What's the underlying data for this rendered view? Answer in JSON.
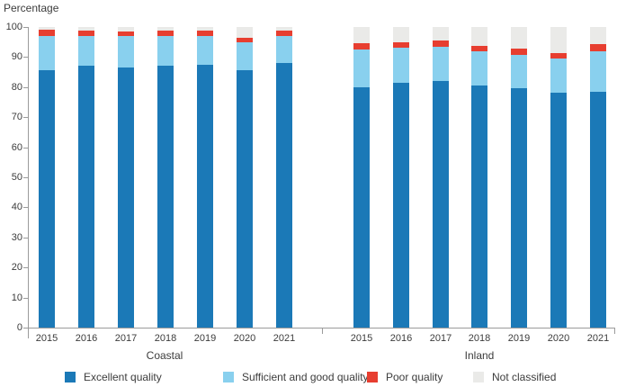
{
  "title": "Percentage",
  "chart_data": {
    "type": "bar",
    "stacked": true,
    "title": "Percentage",
    "xlabel": "",
    "ylabel": "Percentage",
    "ylim": [
      0,
      100
    ],
    "yticks": [
      0,
      10,
      20,
      30,
      40,
      50,
      60,
      70,
      80,
      90,
      100
    ],
    "grid": false,
    "legend_position": "bottom",
    "series_names": [
      "Excellent quality",
      "Sufficient and good quality",
      "Poor quality",
      "Not classified"
    ],
    "colors": {
      "Excellent quality": "#1b79b7",
      "Sufficient and good quality": "#89d0ee",
      "Poor quality": "#e73e30",
      "Not classified": "#eaeae8"
    },
    "groups": [
      {
        "label": "Coastal",
        "categories": [
          "2015",
          "2016",
          "2017",
          "2018",
          "2019",
          "2020",
          "2021"
        ],
        "series": [
          {
            "name": "Excellent quality",
            "values": [
              85.5,
              87.0,
              86.5,
              87.0,
              87.5,
              85.5,
              88.0
            ]
          },
          {
            "name": "Sufficient and good quality",
            "values": [
              11.5,
              10.0,
              10.5,
              10.0,
              9.5,
              9.5,
              9.0
            ]
          },
          {
            "name": "Poor quality",
            "values": [
              2.0,
              1.7,
              1.5,
              1.7,
              1.7,
              1.5,
              1.8
            ]
          },
          {
            "name": "Not classified",
            "values": [
              1.0,
              1.3,
              1.5,
              1.3,
              1.3,
              3.5,
              1.2
            ]
          }
        ]
      },
      {
        "label": "Inland",
        "categories": [
          "2015",
          "2016",
          "2017",
          "2018",
          "2019",
          "2020",
          "2021"
        ],
        "series": [
          {
            "name": "Excellent quality",
            "values": [
              80.0,
              81.5,
              82.0,
              80.5,
              79.5,
              78.0,
              78.5
            ]
          },
          {
            "name": "Sufficient and good quality",
            "values": [
              12.5,
              11.5,
              11.5,
              11.5,
              11.3,
              11.5,
              13.5
            ]
          },
          {
            "name": "Poor quality",
            "values": [
              2.0,
              2.0,
              2.0,
              1.7,
              1.9,
              1.9,
              2.3
            ]
          },
          {
            "name": "Not classified",
            "values": [
              5.5,
              5.0,
              4.5,
              6.3,
              7.3,
              8.6,
              5.7
            ]
          }
        ]
      }
    ]
  },
  "legend": {
    "items": [
      {
        "label": "Excellent quality",
        "color": "#1b79b7"
      },
      {
        "label": "Sufficient and good quality",
        "color": "#89d0ee"
      },
      {
        "label": "Poor quality",
        "color": "#e73e30"
      },
      {
        "label": "Not classified",
        "color": "#eaeae8"
      }
    ]
  },
  "axis": {
    "line_color": "#9b9b9b",
    "text_color": "#3c3c3c"
  }
}
